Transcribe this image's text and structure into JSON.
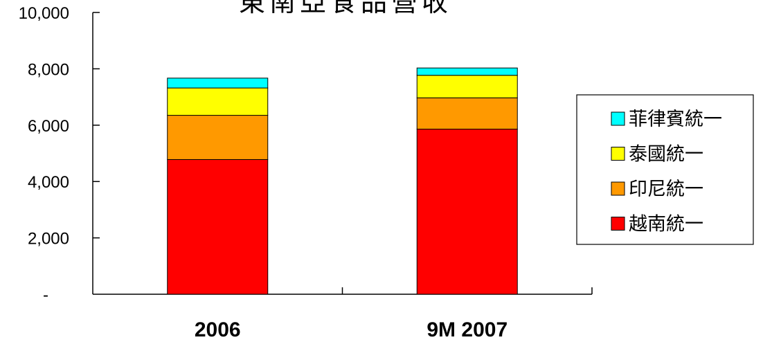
{
  "chart_data": {
    "type": "bar",
    "stacked": true,
    "title": "東南亞食品營收",
    "xlabel": "",
    "ylabel": "",
    "categories": [
      "2006",
      "9M 2007"
    ],
    "ylim": [
      0,
      10000
    ],
    "yticks": [
      {
        "value": 0,
        "label": "-"
      },
      {
        "value": 2000,
        "label": "2,000"
      },
      {
        "value": 4000,
        "label": "4,000"
      },
      {
        "value": 6000,
        "label": "6,000"
      },
      {
        "value": 8000,
        "label": "8,000"
      },
      {
        "value": 10000,
        "label": "10,000"
      }
    ],
    "grid": false,
    "legend_position": "right",
    "series": [
      {
        "name": "越南統一",
        "color": "#ff0000",
        "values": [
          4780,
          5860
        ]
      },
      {
        "name": "印尼統一",
        "color": "#ff9900",
        "values": [
          1570,
          1110
        ]
      },
      {
        "name": "泰國統一",
        "color": "#ffff00",
        "values": [
          970,
          800
        ]
      },
      {
        "name": "菲律賓統一",
        "color": "#00ffff",
        "values": [
          350,
          260
        ]
      }
    ]
  }
}
